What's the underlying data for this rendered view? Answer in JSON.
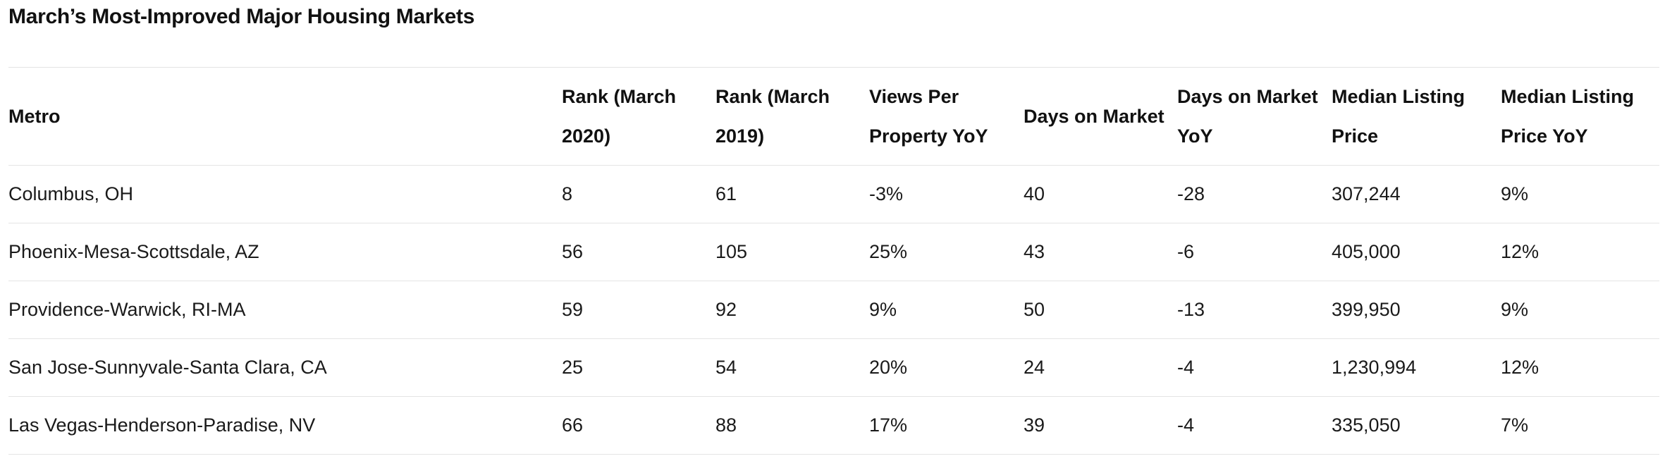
{
  "title": "March’s Most-Improved Major Housing Markets",
  "table": {
    "headers": [
      "Metro",
      "Rank (March 2020)",
      "Rank (March 2019)",
      "Views Per Property YoY",
      "Days on Market",
      "Days on Market YoY",
      "Median Listing Price",
      "Median Listing Price YoY"
    ],
    "rows": [
      [
        "Columbus, OH",
        "8",
        "61",
        "-3%",
        "40",
        "-28",
        "307,244",
        "9%"
      ],
      [
        "Phoenix-Mesa-Scottsdale, AZ",
        "56",
        "105",
        "25%",
        "43",
        "-6",
        "405,000",
        "12%"
      ],
      [
        "Providence-Warwick, RI-MA",
        "59",
        "92",
        "9%",
        "50",
        "-13",
        "399,950",
        "9%"
      ],
      [
        "San Jose-Sunnyvale-Santa Clara, CA",
        "25",
        "54",
        "20%",
        "24",
        "-4",
        "1,230,994",
        "12%"
      ],
      [
        "Las Vegas-Henderson-Paradise, NV",
        "66",
        "88",
        "17%",
        "39",
        "-4",
        "335,050",
        "7%"
      ]
    ]
  }
}
